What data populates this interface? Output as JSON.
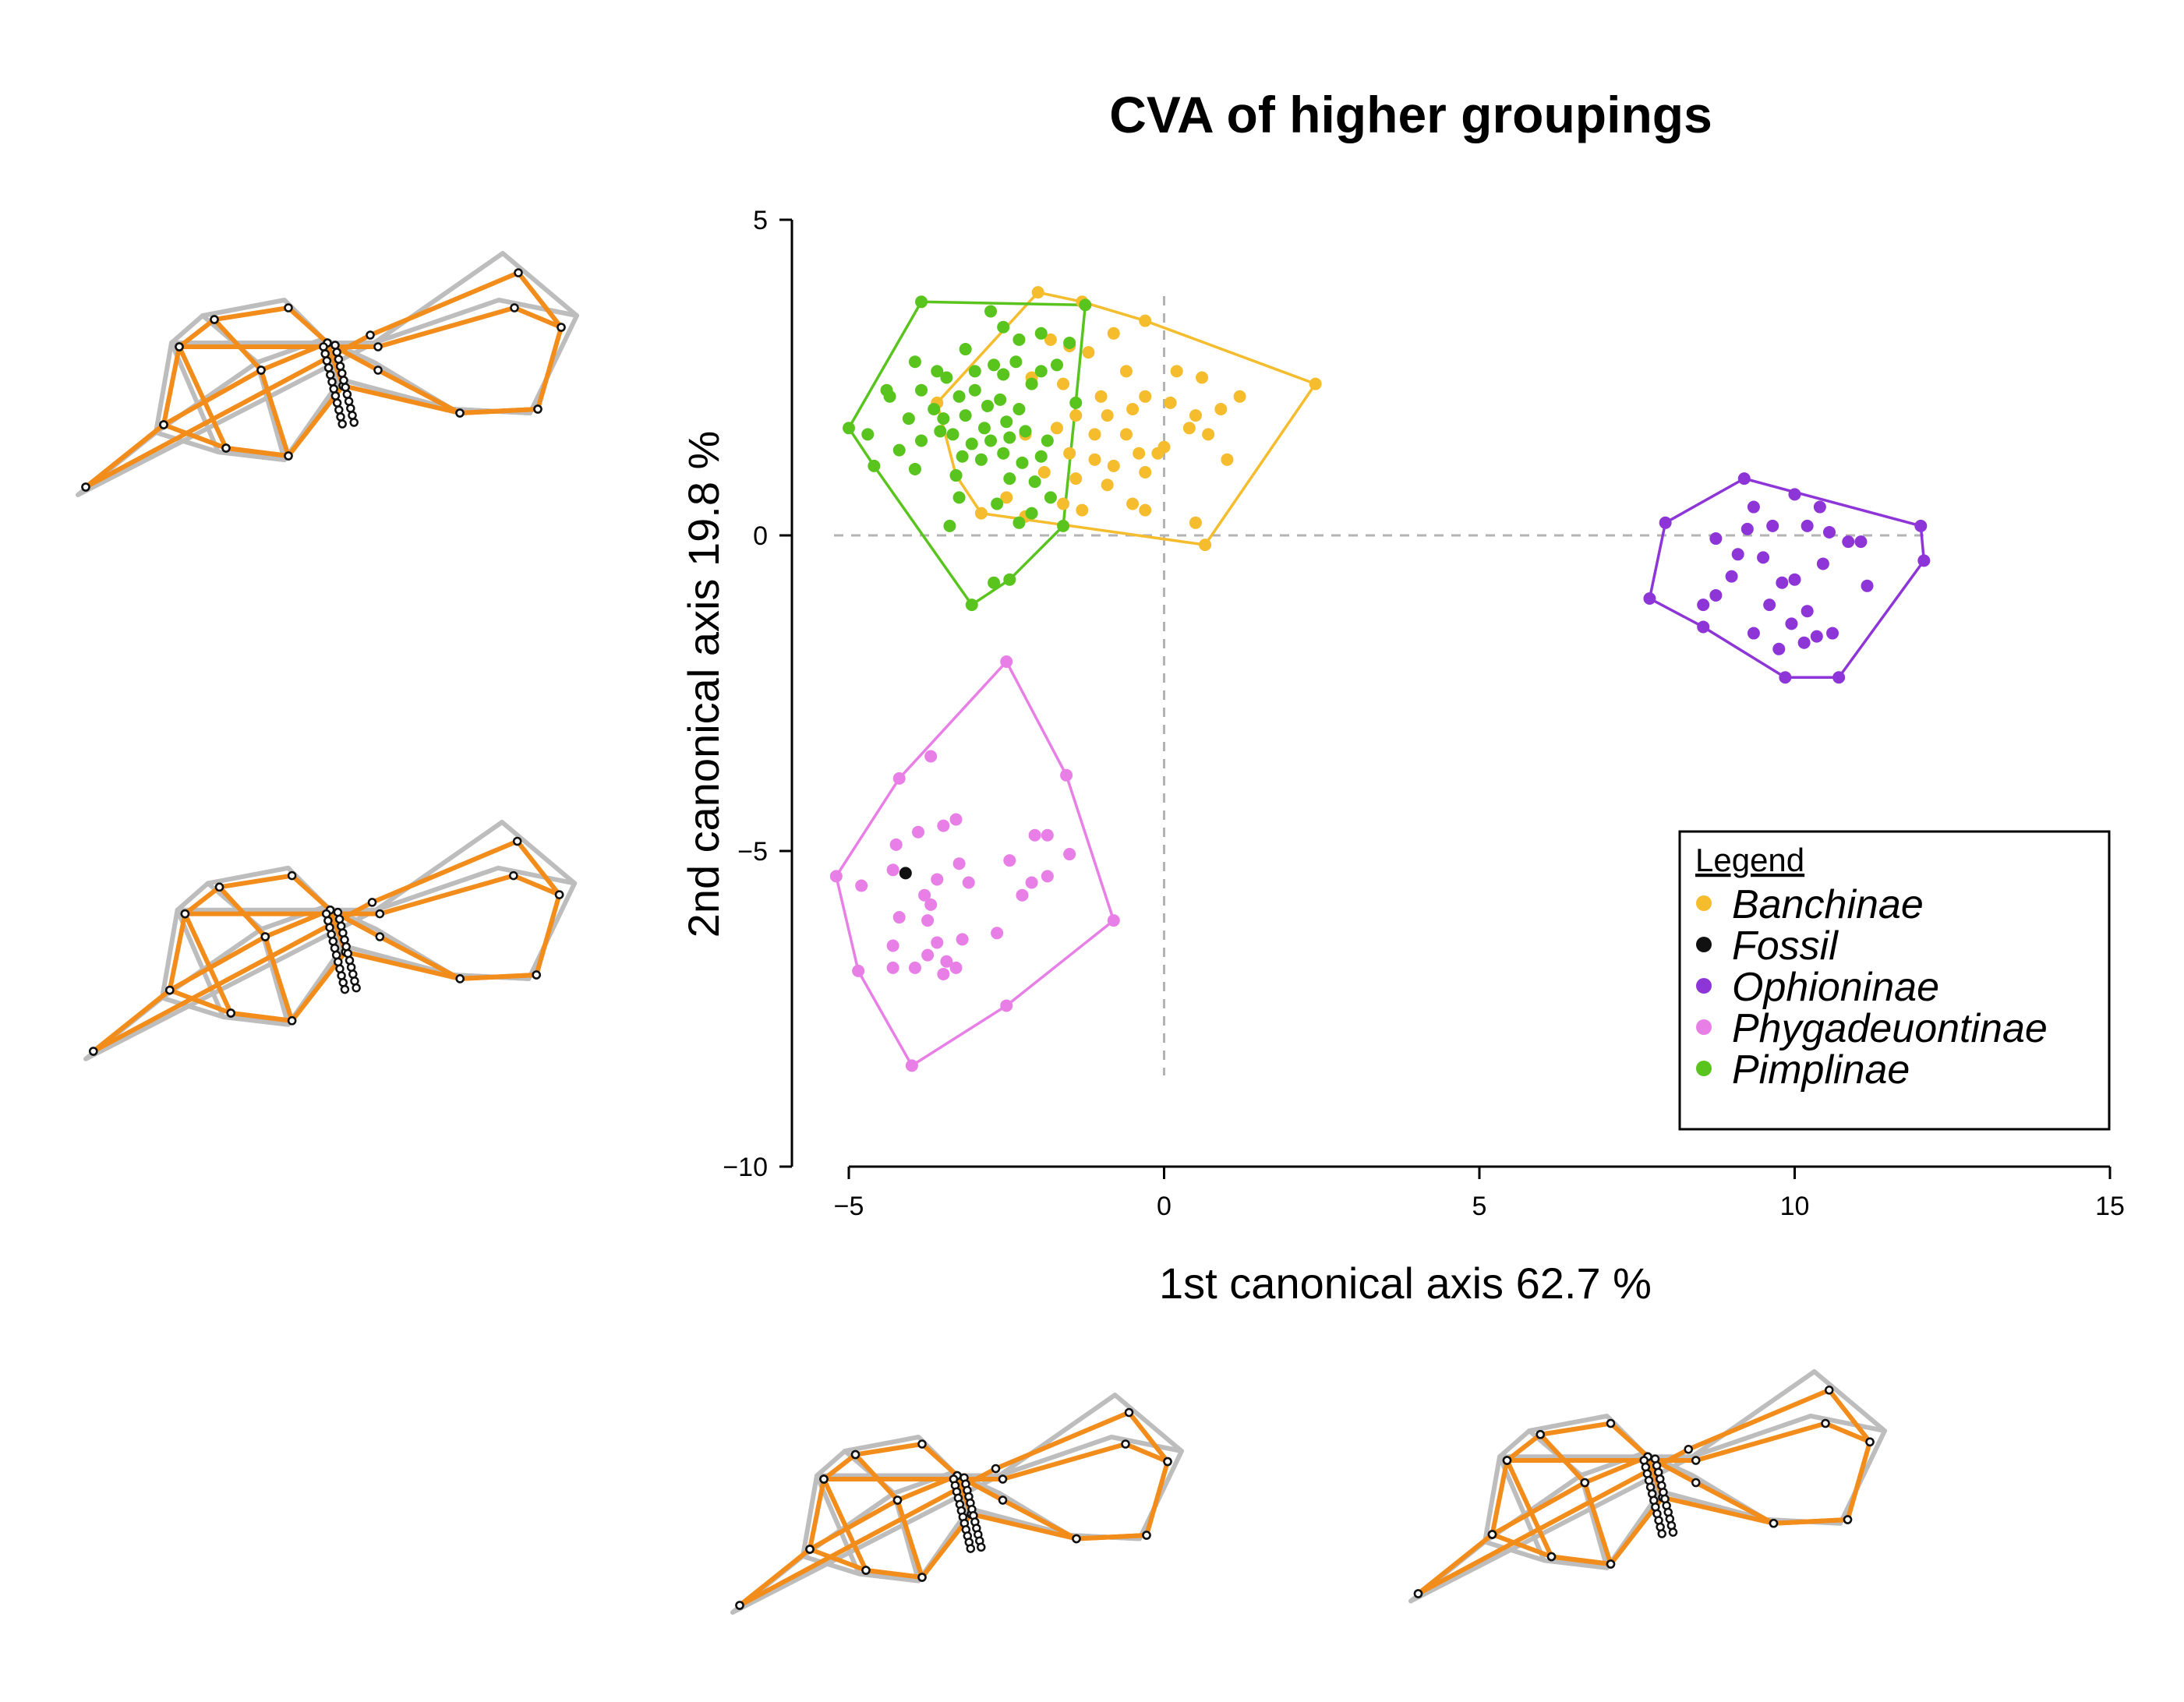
{
  "chart_data": {
    "type": "scatter",
    "title": "CVA of higher groupings",
    "xlabel": "1st canonical axis 62.7 %",
    "ylabel": "2nd canonical axis 19.8 %",
    "xlim": [
      -5,
      15
    ],
    "ylim": [
      -10,
      5
    ],
    "x_ticks": [
      -5,
      0,
      5,
      10,
      15
    ],
    "y_ticks": [
      -10,
      -5,
      0,
      5
    ],
    "x_tick_labels": [
      "−5",
      "0",
      "5",
      "10",
      "15"
    ],
    "y_tick_labels": [
      "−10",
      "−5",
      "0",
      "5"
    ],
    "reference_lines": {
      "x": 0,
      "y": 0,
      "style": "dashed",
      "color": "#b3b3b3"
    },
    "grid": false,
    "legend": {
      "title": "Legend",
      "placement": "lower-right"
    },
    "series": [
      {
        "name": "Banchinae",
        "color": "#f5bc2e",
        "hull": [
          [
            -2.0,
            3.85
          ],
          [
            -1.3,
            3.7
          ],
          [
            -0.3,
            3.4
          ],
          [
            2.4,
            2.4
          ],
          [
            0.65,
            -0.15
          ],
          [
            -2.9,
            0.35
          ],
          [
            -3.3,
            0.95
          ],
          [
            -3.6,
            2.1
          ]
        ],
        "points": [
          [
            -2.0,
            3.85
          ],
          [
            -1.3,
            3.7
          ],
          [
            -0.3,
            3.4
          ],
          [
            2.4,
            2.4
          ],
          [
            0.65,
            -0.15
          ],
          [
            -2.9,
            0.35
          ],
          [
            -3.3,
            0.95
          ],
          [
            -3.6,
            2.1
          ],
          [
            -1.8,
            3.1
          ],
          [
            -1.5,
            3.0
          ],
          [
            -1.2,
            2.9
          ],
          [
            -0.8,
            3.2
          ],
          [
            -0.6,
            2.6
          ],
          [
            -2.1,
            2.5
          ],
          [
            -1.6,
            2.4
          ],
          [
            -1.0,
            2.2
          ],
          [
            -0.3,
            2.2
          ],
          [
            0.2,
            2.6
          ],
          [
            0.6,
            2.5
          ],
          [
            1.2,
            2.2
          ],
          [
            -1.4,
            1.9
          ],
          [
            -0.9,
            1.9
          ],
          [
            -0.5,
            2.0
          ],
          [
            0.1,
            2.1
          ],
          [
            0.5,
            1.9
          ],
          [
            0.9,
            2.0
          ],
          [
            -2.2,
            1.6
          ],
          [
            -1.7,
            1.7
          ],
          [
            -1.1,
            1.6
          ],
          [
            -0.6,
            1.6
          ],
          [
            0.0,
            1.4
          ],
          [
            0.4,
            1.7
          ],
          [
            -1.5,
            1.3
          ],
          [
            -1.1,
            1.2
          ],
          [
            -0.8,
            1.1
          ],
          [
            -0.4,
            1.3
          ],
          [
            -0.1,
            1.3
          ],
          [
            0.7,
            1.6
          ],
          [
            1.0,
            1.2
          ],
          [
            -1.9,
            1.0
          ],
          [
            -1.4,
            0.9
          ],
          [
            -0.9,
            0.8
          ],
          [
            -0.3,
            1.0
          ],
          [
            -2.5,
            0.6
          ],
          [
            -1.6,
            0.5
          ],
          [
            -0.5,
            0.5
          ],
          [
            -0.3,
            0.4
          ],
          [
            0.5,
            0.2
          ],
          [
            -1.3,
            0.4
          ],
          [
            -2.2,
            0.3
          ]
        ]
      },
      {
        "name": "Fossil",
        "color": "#111111",
        "hull": [],
        "points": [
          [
            -4.1,
            -5.35
          ]
        ]
      },
      {
        "name": "Ophioninae",
        "color": "#8e35d8",
        "hull": [
          [
            9.2,
            0.9
          ],
          [
            12.0,
            0.15
          ],
          [
            12.05,
            -0.4
          ],
          [
            10.7,
            -2.25
          ],
          [
            9.85,
            -2.25
          ],
          [
            8.55,
            -1.45
          ],
          [
            7.7,
            -1.0
          ],
          [
            7.95,
            0.2
          ]
        ],
        "points": [
          [
            9.2,
            0.9
          ],
          [
            12.0,
            0.15
          ],
          [
            12.05,
            -0.4
          ],
          [
            10.7,
            -2.25
          ],
          [
            9.85,
            -2.25
          ],
          [
            8.55,
            -1.45
          ],
          [
            7.7,
            -1.0
          ],
          [
            7.95,
            0.2
          ],
          [
            10.0,
            0.65
          ],
          [
            10.4,
            0.45
          ],
          [
            9.35,
            0.45
          ],
          [
            9.65,
            0.15
          ],
          [
            9.25,
            0.1
          ],
          [
            10.2,
            0.15
          ],
          [
            10.55,
            0.05
          ],
          [
            8.75,
            -0.05
          ],
          [
            10.85,
            -0.1
          ],
          [
            11.05,
            -0.1
          ],
          [
            9.1,
            -0.3
          ],
          [
            9.5,
            -0.35
          ],
          [
            9.0,
            -0.65
          ],
          [
            9.8,
            -0.75
          ],
          [
            10.45,
            -0.45
          ],
          [
            10.0,
            -0.7
          ],
          [
            8.75,
            -0.95
          ],
          [
            11.15,
            -0.8
          ],
          [
            9.6,
            -1.1
          ],
          [
            10.2,
            -1.2
          ],
          [
            8.55,
            -1.1
          ],
          [
            9.35,
            -1.55
          ],
          [
            9.95,
            -1.4
          ],
          [
            10.35,
            -1.6
          ],
          [
            10.6,
            -1.55
          ],
          [
            9.75,
            -1.8
          ],
          [
            10.15,
            -1.7
          ]
        ]
      },
      {
        "name": "Phygadeuontinae",
        "color": "#e87fe6",
        "hull": [
          [
            -2.5,
            -2.0
          ],
          [
            -1.55,
            -3.8
          ],
          [
            -0.8,
            -6.1
          ],
          [
            -2.5,
            -7.45
          ],
          [
            -4.0,
            -8.4
          ],
          [
            -4.85,
            -6.9
          ],
          [
            -5.2,
            -5.4
          ],
          [
            -4.2,
            -3.85
          ]
        ],
        "points": [
          [
            -2.5,
            -2.0
          ],
          [
            -1.55,
            -3.8
          ],
          [
            -0.8,
            -6.1
          ],
          [
            -2.5,
            -7.45
          ],
          [
            -4.0,
            -8.4
          ],
          [
            -4.85,
            -6.9
          ],
          [
            -5.2,
            -5.4
          ],
          [
            -4.2,
            -3.85
          ],
          [
            -3.7,
            -3.5
          ],
          [
            -3.5,
            -4.6
          ],
          [
            -3.3,
            -4.5
          ],
          [
            -3.9,
            -4.7
          ],
          [
            -4.25,
            -4.9
          ],
          [
            -2.05,
            -4.75
          ],
          [
            -1.85,
            -4.75
          ],
          [
            -1.5,
            -5.05
          ],
          [
            -2.45,
            -5.15
          ],
          [
            -3.25,
            -5.2
          ],
          [
            -1.85,
            -5.4
          ],
          [
            -2.1,
            -5.5
          ],
          [
            -3.6,
            -5.45
          ],
          [
            -3.1,
            -5.5
          ],
          [
            -4.3,
            -5.3
          ],
          [
            -3.8,
            -5.7
          ],
          [
            -4.8,
            -5.55
          ],
          [
            -2.25,
            -5.7
          ],
          [
            -3.7,
            -5.85
          ],
          [
            -4.2,
            -6.05
          ],
          [
            -3.75,
            -6.1
          ],
          [
            -3.6,
            -6.45
          ],
          [
            -3.2,
            -6.4
          ],
          [
            -4.3,
            -6.5
          ],
          [
            -2.65,
            -6.3
          ],
          [
            -3.45,
            -6.75
          ],
          [
            -3.95,
            -6.85
          ],
          [
            -3.75,
            -6.65
          ],
          [
            -4.3,
            -6.85
          ],
          [
            -3.3,
            -6.85
          ],
          [
            -3.5,
            -6.95
          ]
        ]
      },
      {
        "name": "Pimplinae",
        "color": "#5ac41f",
        "hull": [
          [
            -3.85,
            3.7
          ],
          [
            -1.25,
            3.65
          ],
          [
            -1.4,
            2.1
          ],
          [
            -1.6,
            0.15
          ],
          [
            -2.45,
            -0.7
          ],
          [
            -3.05,
            -1.1
          ],
          [
            -4.6,
            1.1
          ],
          [
            -5.0,
            1.7
          ]
        ],
        "points": [
          [
            -3.85,
            3.7
          ],
          [
            -1.25,
            3.65
          ],
          [
            -1.4,
            2.1
          ],
          [
            -1.6,
            0.15
          ],
          [
            -2.45,
            -0.7
          ],
          [
            -3.05,
            -1.1
          ],
          [
            -4.6,
            1.1
          ],
          [
            -5.0,
            1.7
          ],
          [
            -2.75,
            3.55
          ],
          [
            -2.55,
            3.3
          ],
          [
            -2.3,
            3.1
          ],
          [
            -1.95,
            3.2
          ],
          [
            -1.5,
            3.05
          ],
          [
            -3.95,
            2.75
          ],
          [
            -3.6,
            2.6
          ],
          [
            -3.15,
            2.95
          ],
          [
            -2.7,
            2.7
          ],
          [
            -2.35,
            2.75
          ],
          [
            -1.7,
            2.7
          ],
          [
            -4.4,
            2.3
          ],
          [
            -4.35,
            2.2
          ],
          [
            -3.85,
            2.3
          ],
          [
            -3.45,
            2.5
          ],
          [
            -3.0,
            2.6
          ],
          [
            -2.55,
            2.55
          ],
          [
            -2.1,
            2.4
          ],
          [
            -1.95,
            2.6
          ],
          [
            -3.65,
            2.0
          ],
          [
            -3.25,
            2.2
          ],
          [
            -3.0,
            2.3
          ],
          [
            -2.8,
            2.05
          ],
          [
            -2.6,
            2.15
          ],
          [
            -2.3,
            2.0
          ],
          [
            -4.05,
            1.85
          ],
          [
            -3.5,
            1.85
          ],
          [
            -3.15,
            1.9
          ],
          [
            -2.85,
            1.7
          ],
          [
            -2.5,
            1.8
          ],
          [
            -2.2,
            1.65
          ],
          [
            -1.85,
            1.5
          ],
          [
            -4.2,
            1.35
          ],
          [
            -3.85,
            1.5
          ],
          [
            -3.55,
            1.65
          ],
          [
            -3.35,
            1.6
          ],
          [
            -3.05,
            1.45
          ],
          [
            -2.75,
            1.5
          ],
          [
            -2.45,
            1.55
          ],
          [
            -3.2,
            1.25
          ],
          [
            -2.9,
            1.2
          ],
          [
            -2.55,
            1.3
          ],
          [
            -2.25,
            1.15
          ],
          [
            -1.95,
            1.25
          ],
          [
            -4.7,
            1.6
          ],
          [
            -3.95,
            1.05
          ],
          [
            -3.3,
            0.95
          ],
          [
            -2.45,
            0.9
          ],
          [
            -2.05,
            0.85
          ],
          [
            -1.8,
            0.6
          ],
          [
            -3.25,
            0.6
          ],
          [
            -2.65,
            0.5
          ],
          [
            -2.3,
            0.2
          ],
          [
            -3.4,
            0.15
          ],
          [
            -2.7,
            -0.75
          ],
          [
            -2.1,
            0.35
          ]
        ]
      }
    ]
  },
  "wing_diagrams": [
    {
      "name": "wing-top-left",
      "colors": {
        "reference": "#bdbdbd",
        "target": "#f28c1b",
        "landmark": "#111111"
      }
    },
    {
      "name": "wing-middle-left",
      "colors": {
        "reference": "#bdbdbd",
        "target": "#f28c1b",
        "landmark": "#111111"
      }
    },
    {
      "name": "wing-bottom-center",
      "colors": {
        "reference": "#bdbdbd",
        "target": "#f28c1b",
        "landmark": "#111111"
      }
    },
    {
      "name": "wing-bottom-right",
      "colors": {
        "reference": "#bdbdbd",
        "target": "#f28c1b",
        "landmark": "#111111"
      }
    }
  ]
}
